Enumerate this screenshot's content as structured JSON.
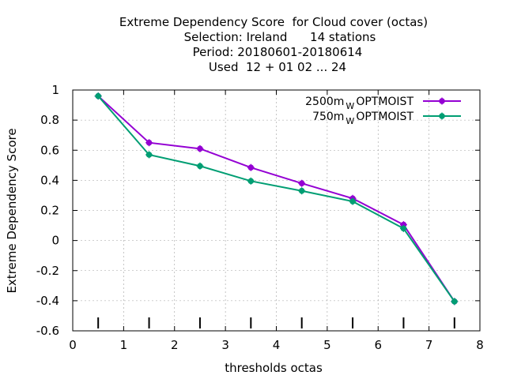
{
  "chart_data": {
    "type": "line",
    "title_lines": [
      "Extreme Dependency Score  for Cloud cover (octas)",
      "Selection: Ireland      14 stations",
      "Period: 20180601-20180614",
      "Used  12 + 01 02 ... 24"
    ],
    "xlabel": "thresholds octas",
    "ylabel": "Extreme Dependency Score",
    "xlim": [
      0,
      8
    ],
    "ylim": [
      -0.6,
      1
    ],
    "xticks": [
      0,
      1,
      2,
      3,
      4,
      5,
      6,
      7,
      8
    ],
    "yticks": [
      -0.6,
      -0.4,
      -0.2,
      0,
      0.2,
      0.4,
      0.6,
      0.8,
      1
    ],
    "xtick_labels": [
      "0",
      "1",
      "2",
      "3",
      "4",
      "5",
      "6",
      "7",
      "8"
    ],
    "ytick_labels": [
      "-0.6",
      "-0.4",
      "-0.2",
      "0",
      "0.2",
      "0.4",
      "0.6",
      "0.8",
      "1"
    ],
    "grid": true,
    "legend_position": "top-right",
    "threshold_marks_x": [
      0.5,
      1.5,
      2.5,
      3.5,
      4.5,
      5.5,
      6.5,
      7.5
    ],
    "series": [
      {
        "name": "2500m",
        "name_sub": "W",
        "name_suffix": "OPTMOIST",
        "color": "#9400d3",
        "x": [
          0.5,
          1.5,
          2.5,
          3.5,
          4.5,
          5.5,
          6.5,
          7.5
        ],
        "y": [
          0.96,
          0.65,
          0.61,
          0.485,
          0.38,
          0.28,
          0.105,
          -0.405
        ]
      },
      {
        "name": "750m",
        "name_sub": "W",
        "name_suffix": "OPTMOIST",
        "color": "#009e73",
        "x": [
          0.5,
          1.5,
          2.5,
          3.5,
          4.5,
          5.5,
          6.5,
          7.5
        ],
        "y": [
          0.96,
          0.57,
          0.495,
          0.395,
          0.33,
          0.26,
          0.08,
          -0.405
        ]
      }
    ]
  }
}
